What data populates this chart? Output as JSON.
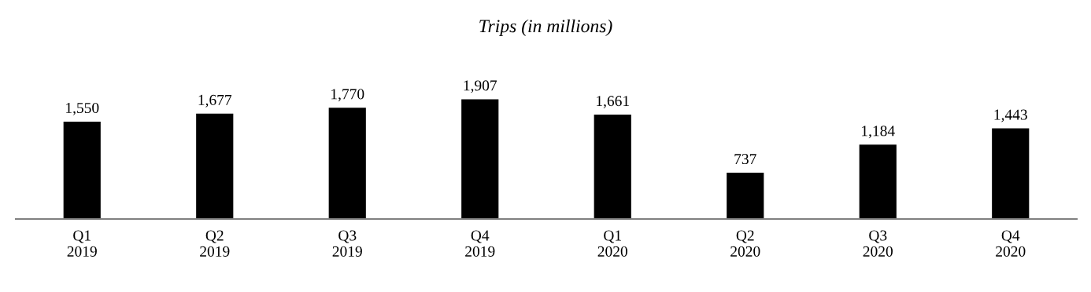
{
  "chart_data": {
    "type": "bar",
    "title": "Trips (in millions)",
    "categories": [
      "Q1\n2019",
      "Q2\n2019",
      "Q3\n2019",
      "Q4\n2019",
      "Q1\n2020",
      "Q2\n2020",
      "Q3\n2020",
      "Q4\n2020"
    ],
    "values": [
      1550,
      1677,
      1770,
      1907,
      1661,
      737,
      1184,
      1443
    ],
    "value_labels": [
      "1,550",
      "1,677",
      "1,770",
      "1,907",
      "1,661",
      "737",
      "1,184",
      "1,443"
    ],
    "color": "#000000",
    "grid": false,
    "legend": false
  }
}
